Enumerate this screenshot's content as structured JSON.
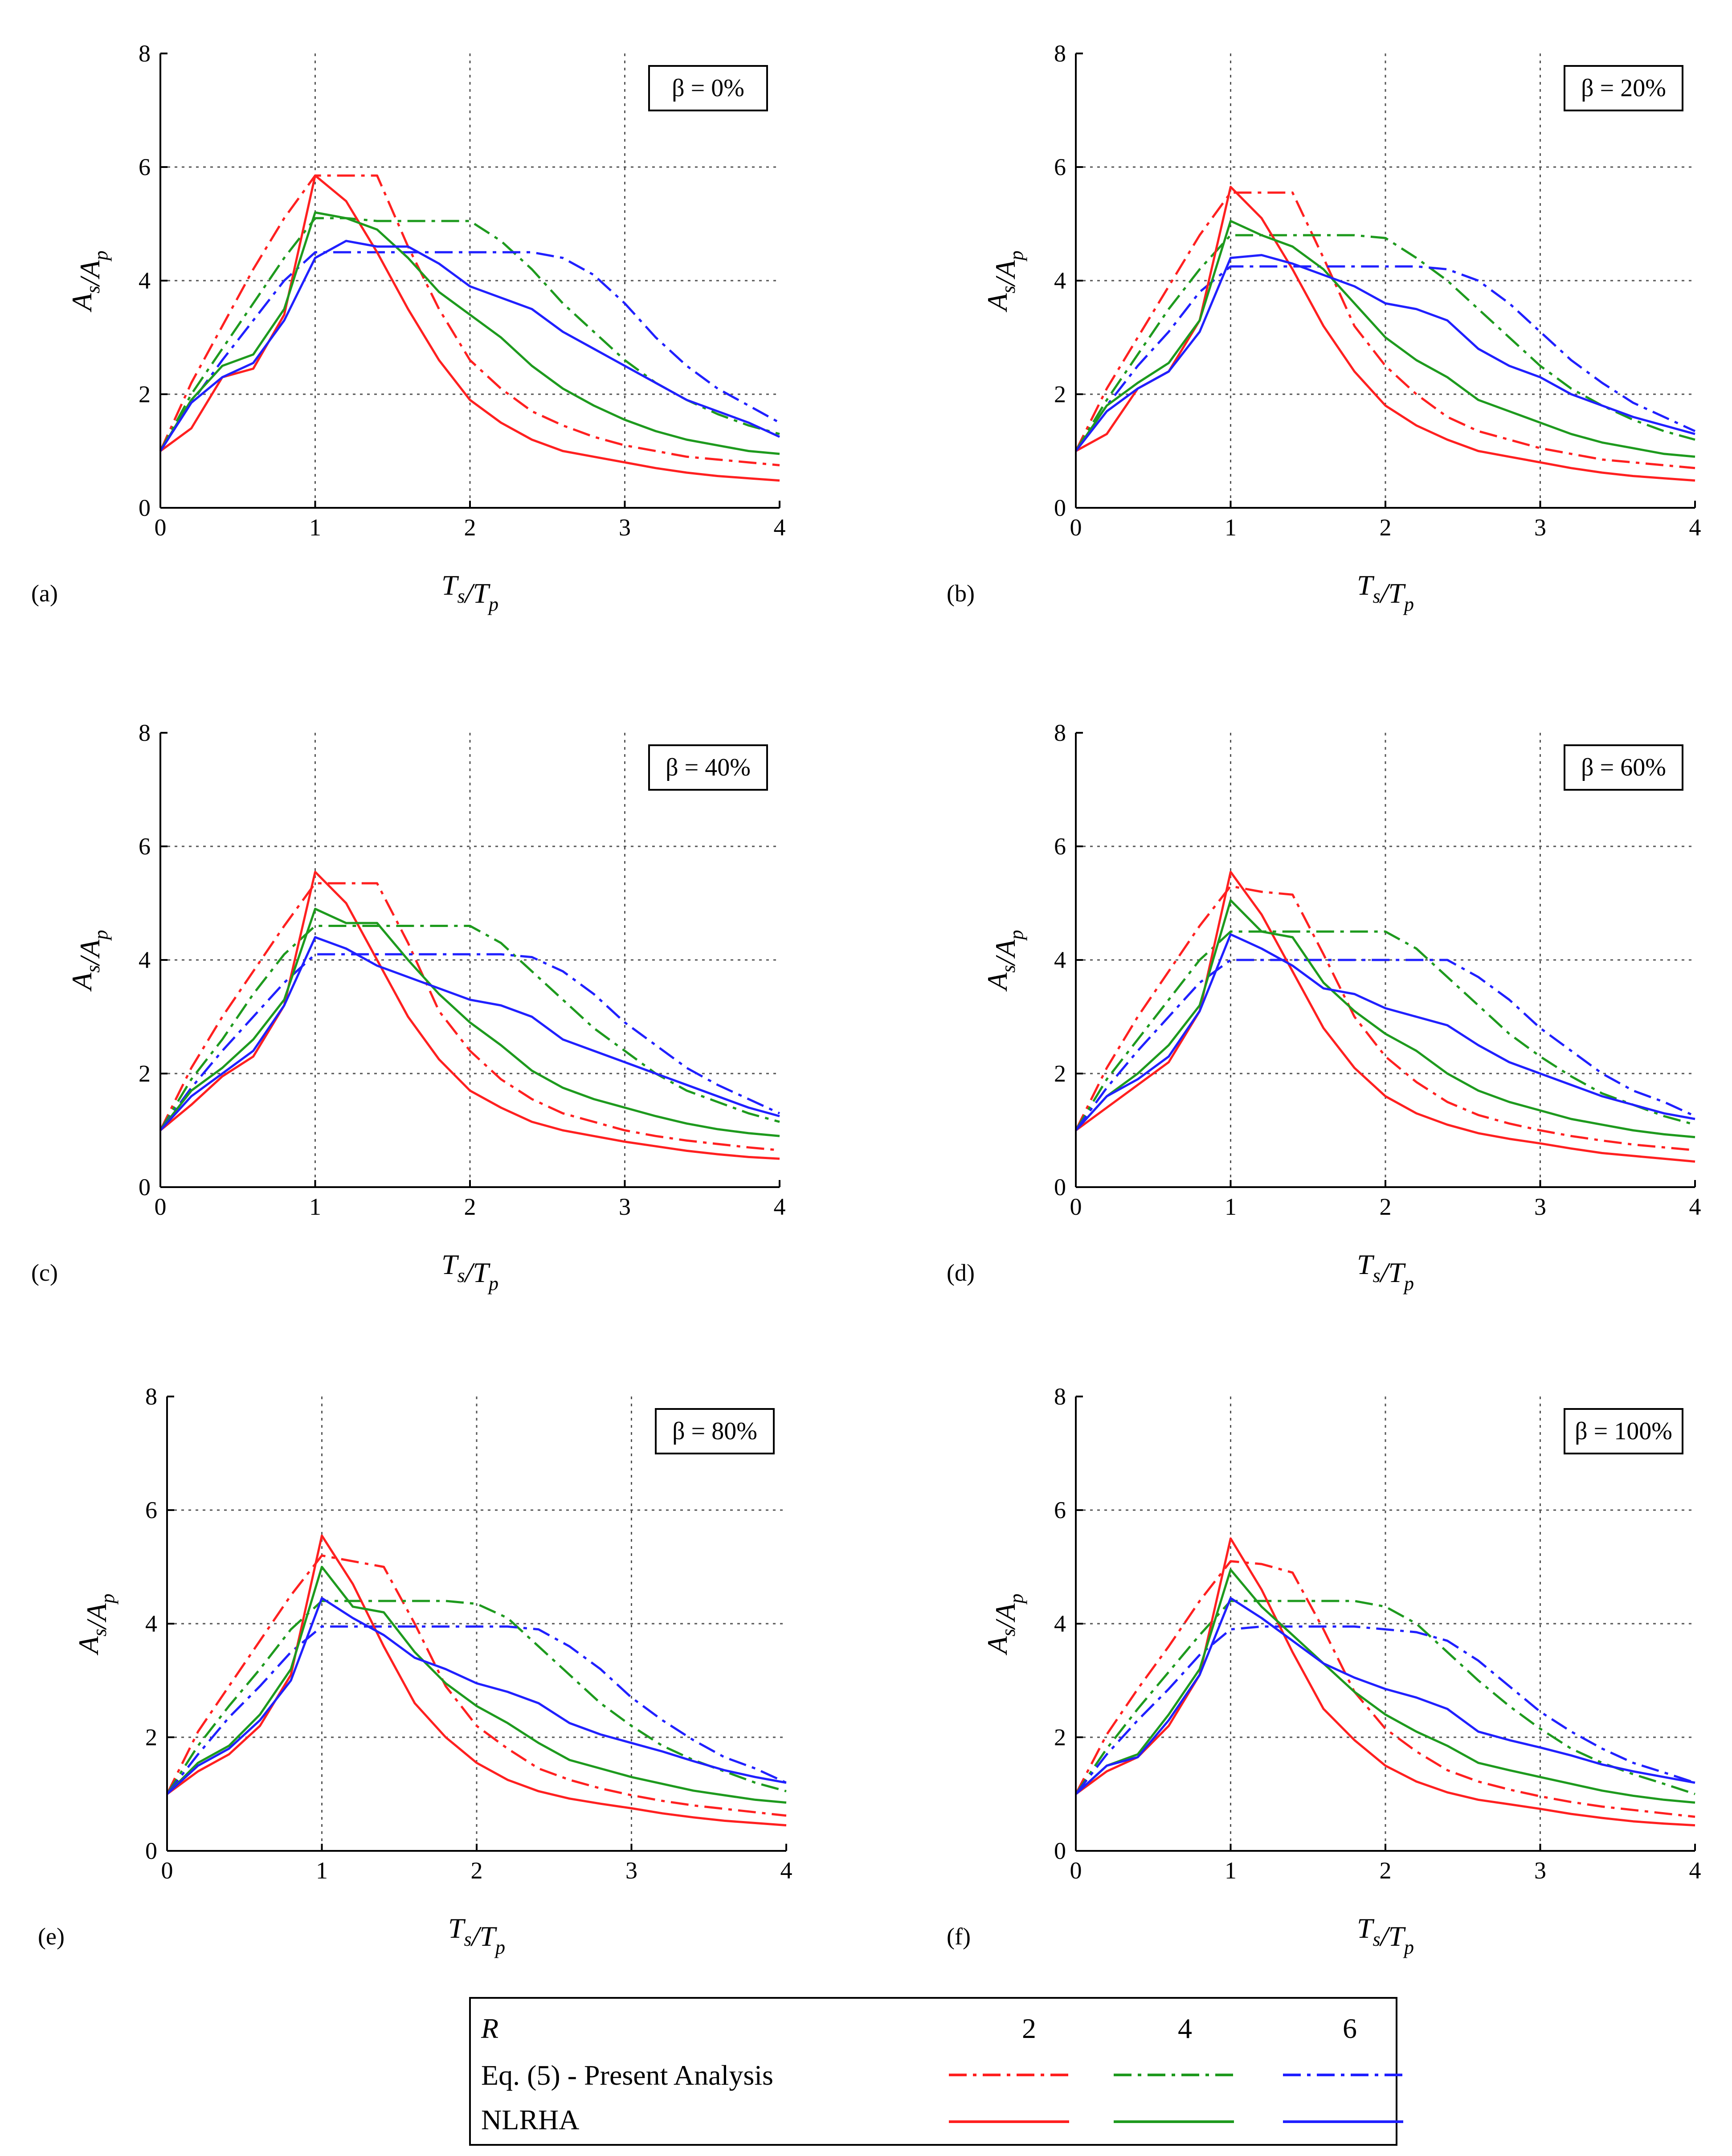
{
  "chart_data": {
    "type": "line",
    "xlabel": "T_s/T_p",
    "ylabel": "A_s/A_p",
    "xlim": [
      0,
      4
    ],
    "ylim": [
      0,
      8
    ],
    "xticks": [
      "0",
      "1",
      "2",
      "3",
      "4"
    ],
    "yticks": [
      "0",
      "2",
      "4",
      "6",
      "8"
    ],
    "grid": "dotted",
    "x": [
      0,
      0.2,
      0.4,
      0.6,
      0.8,
      1.0,
      1.2,
      1.4,
      1.6,
      1.8,
      2.0,
      2.2,
      2.4,
      2.6,
      2.8,
      3.0,
      3.2,
      3.4,
      3.6,
      3.8,
      4.0
    ],
    "panels": [
      {
        "label": "(a)",
        "beta": "β = 0%",
        "series": [
          {
            "name": "Eq. (5) R=2",
            "values": [
              1.0,
              2.2,
              3.2,
              4.2,
              5.1,
              5.85,
              5.85,
              5.85,
              4.6,
              3.5,
              2.6,
              2.1,
              1.7,
              1.45,
              1.25,
              1.1,
              1.0,
              0.9,
              0.85,
              0.8,
              0.75
            ]
          },
          {
            "name": "Eq. (5) R=4",
            "values": [
              1.0,
              2.0,
              2.8,
              3.6,
              4.4,
              5.1,
              5.1,
              5.05,
              5.05,
              5.05,
              5.05,
              4.7,
              4.2,
              3.6,
              3.1,
              2.6,
              2.2,
              1.9,
              1.65,
              1.45,
              1.3
            ]
          },
          {
            "name": "Eq. (5) R=6",
            "values": [
              1.0,
              1.85,
              2.6,
              3.3,
              4.0,
              4.5,
              4.5,
              4.5,
              4.5,
              4.5,
              4.5,
              4.5,
              4.5,
              4.4,
              4.1,
              3.6,
              3.0,
              2.5,
              2.1,
              1.8,
              1.5
            ]
          },
          {
            "name": "NLRHA R=2",
            "values": [
              1.0,
              1.4,
              2.3,
              2.45,
              3.4,
              5.85,
              5.4,
              4.5,
              3.5,
              2.6,
              1.9,
              1.5,
              1.2,
              1.0,
              0.9,
              0.8,
              0.7,
              0.62,
              0.56,
              0.52,
              0.48
            ]
          },
          {
            "name": "NLRHA R=4",
            "values": [
              1.0,
              1.9,
              2.5,
              2.7,
              3.5,
              5.2,
              5.1,
              4.9,
              4.4,
              3.8,
              3.4,
              3.0,
              2.5,
              2.1,
              1.8,
              1.55,
              1.35,
              1.2,
              1.1,
              1.0,
              0.95
            ]
          },
          {
            "name": "NLRHA R=6",
            "values": [
              1.0,
              1.85,
              2.3,
              2.55,
              3.3,
              4.4,
              4.7,
              4.6,
              4.6,
              4.3,
              3.9,
              3.7,
              3.5,
              3.1,
              2.8,
              2.5,
              2.2,
              1.9,
              1.7,
              1.5,
              1.25
            ]
          }
        ]
      },
      {
        "label": "(b)",
        "beta": "β = 20%",
        "series": [
          {
            "name": "Eq. (5) R=2",
            "values": [
              1.0,
              2.1,
              3.0,
              3.9,
              4.8,
              5.55,
              5.55,
              5.55,
              4.4,
              3.2,
              2.5,
              2.0,
              1.6,
              1.35,
              1.2,
              1.05,
              0.95,
              0.85,
              0.8,
              0.75,
              0.7
            ]
          },
          {
            "name": "Eq. (5) R=4",
            "values": [
              1.0,
              1.9,
              2.7,
              3.5,
              4.2,
              4.8,
              4.8,
              4.8,
              4.8,
              4.8,
              4.75,
              4.4,
              4.0,
              3.5,
              3.0,
              2.5,
              2.1,
              1.8,
              1.55,
              1.35,
              1.2
            ]
          },
          {
            "name": "Eq. (5) R=6",
            "values": [
              1.0,
              1.8,
              2.5,
              3.1,
              3.8,
              4.25,
              4.25,
              4.25,
              4.25,
              4.25,
              4.25,
              4.25,
              4.2,
              4.0,
              3.6,
              3.1,
              2.6,
              2.2,
              1.85,
              1.6,
              1.35
            ]
          },
          {
            "name": "NLRHA R=2",
            "values": [
              1.0,
              1.3,
              2.1,
              2.4,
              3.3,
              5.65,
              5.1,
              4.2,
              3.2,
              2.4,
              1.8,
              1.45,
              1.2,
              1.0,
              0.9,
              0.8,
              0.7,
              0.62,
              0.56,
              0.52,
              0.48
            ]
          },
          {
            "name": "NLRHA R=4",
            "values": [
              1.0,
              1.8,
              2.2,
              2.55,
              3.3,
              5.05,
              4.8,
              4.6,
              4.2,
              3.6,
              3.0,
              2.6,
              2.3,
              1.9,
              1.7,
              1.5,
              1.3,
              1.15,
              1.05,
              0.95,
              0.9
            ]
          },
          {
            "name": "NLRHA R=6",
            "values": [
              1.0,
              1.7,
              2.1,
              2.4,
              3.1,
              4.4,
              4.45,
              4.3,
              4.1,
              3.9,
              3.6,
              3.5,
              3.3,
              2.8,
              2.5,
              2.3,
              2.0,
              1.8,
              1.6,
              1.45,
              1.3
            ]
          }
        ]
      },
      {
        "label": "(c)",
        "beta": "β = 40%",
        "series": [
          {
            "name": "Eq. (5) R=2",
            "values": [
              1.0,
              2.1,
              3.0,
              3.8,
              4.6,
              5.35,
              5.35,
              5.35,
              4.3,
              3.1,
              2.4,
              1.9,
              1.55,
              1.3,
              1.15,
              1.0,
              0.9,
              0.82,
              0.76,
              0.7,
              0.65
            ]
          },
          {
            "name": "Eq. (5) R=4",
            "values": [
              1.0,
              1.9,
              2.6,
              3.4,
              4.1,
              4.6,
              4.6,
              4.6,
              4.6,
              4.6,
              4.6,
              4.3,
              3.8,
              3.3,
              2.8,
              2.4,
              2.0,
              1.7,
              1.5,
              1.3,
              1.15
            ]
          },
          {
            "name": "Eq. (5) R=6",
            "values": [
              1.0,
              1.75,
              2.4,
              3.0,
              3.6,
              4.1,
              4.1,
              4.1,
              4.1,
              4.1,
              4.1,
              4.1,
              4.05,
              3.8,
              3.4,
              2.9,
              2.5,
              2.1,
              1.8,
              1.55,
              1.3
            ]
          },
          {
            "name": "NLRHA R=2",
            "values": [
              1.0,
              1.45,
              1.95,
              2.3,
              3.2,
              5.55,
              5.0,
              4.0,
              3.0,
              2.25,
              1.7,
              1.4,
              1.15,
              1.0,
              0.9,
              0.8,
              0.72,
              0.64,
              0.58,
              0.53,
              0.5
            ]
          },
          {
            "name": "NLRHA R=4",
            "values": [
              1.0,
              1.7,
              2.1,
              2.6,
              3.3,
              4.9,
              4.65,
              4.65,
              4.0,
              3.4,
              2.9,
              2.5,
              2.05,
              1.75,
              1.55,
              1.4,
              1.25,
              1.12,
              1.02,
              0.95,
              0.9
            ]
          },
          {
            "name": "NLRHA R=6",
            "values": [
              1.0,
              1.6,
              2.0,
              2.4,
              3.2,
              4.4,
              4.2,
              3.9,
              3.7,
              3.5,
              3.3,
              3.2,
              3.0,
              2.6,
              2.4,
              2.2,
              2.0,
              1.8,
              1.6,
              1.4,
              1.25
            ]
          }
        ]
      },
      {
        "label": "(d)",
        "beta": "β = 60%",
        "series": [
          {
            "name": "Eq. (5) R=2",
            "values": [
              1.0,
              2.1,
              3.0,
              3.8,
              4.6,
              5.3,
              5.2,
              5.15,
              4.1,
              3.0,
              2.3,
              1.85,
              1.5,
              1.27,
              1.12,
              1.0,
              0.9,
              0.82,
              0.75,
              0.7,
              0.65
            ]
          },
          {
            "name": "Eq. (5) R=4",
            "values": [
              1.0,
              1.9,
              2.6,
              3.3,
              4.0,
              4.5,
              4.5,
              4.5,
              4.5,
              4.5,
              4.5,
              4.2,
              3.7,
              3.2,
              2.7,
              2.3,
              1.95,
              1.65,
              1.45,
              1.25,
              1.1
            ]
          },
          {
            "name": "Eq. (5) R=6",
            "values": [
              1.0,
              1.75,
              2.4,
              3.0,
              3.6,
              4.0,
              4.0,
              4.0,
              4.0,
              4.0,
              4.0,
              4.0,
              4.0,
              3.7,
              3.3,
              2.8,
              2.4,
              2.0,
              1.7,
              1.5,
              1.25
            ]
          },
          {
            "name": "NLRHA R=2",
            "values": [
              1.0,
              1.4,
              1.8,
              2.2,
              3.1,
              5.55,
              4.8,
              3.8,
              2.8,
              2.1,
              1.6,
              1.3,
              1.1,
              0.95,
              0.85,
              0.77,
              0.68,
              0.6,
              0.55,
              0.5,
              0.45
            ]
          },
          {
            "name": "NLRHA R=4",
            "values": [
              1.0,
              1.6,
              2.0,
              2.5,
              3.2,
              5.05,
              4.5,
              4.4,
              3.6,
              3.1,
              2.7,
              2.4,
              2.0,
              1.7,
              1.5,
              1.35,
              1.2,
              1.1,
              1.0,
              0.93,
              0.88
            ]
          },
          {
            "name": "NLRHA R=6",
            "values": [
              1.0,
              1.6,
              1.9,
              2.3,
              3.1,
              4.45,
              4.2,
              3.9,
              3.5,
              3.4,
              3.15,
              3.0,
              2.85,
              2.5,
              2.2,
              2.0,
              1.8,
              1.6,
              1.45,
              1.3,
              1.2
            ]
          }
        ]
      },
      {
        "label": "(e)",
        "beta": "β = 80%",
        "series": [
          {
            "name": "Eq. (5) R=2",
            "values": [
              1.0,
              2.1,
              2.9,
              3.7,
              4.5,
              5.2,
              5.1,
              5.0,
              4.0,
              2.9,
              2.2,
              1.8,
              1.45,
              1.25,
              1.1,
              0.98,
              0.88,
              0.8,
              0.74,
              0.68,
              0.62
            ]
          },
          {
            "name": "Eq. (5) R=4",
            "values": [
              1.0,
              1.85,
              2.55,
              3.2,
              3.9,
              4.4,
              4.4,
              4.4,
              4.4,
              4.4,
              4.35,
              4.1,
              3.6,
              3.1,
              2.6,
              2.2,
              1.85,
              1.6,
              1.4,
              1.2,
              1.05
            ]
          },
          {
            "name": "Eq. (5) R=6",
            "values": [
              1.0,
              1.7,
              2.35,
              2.9,
              3.5,
              3.95,
              3.95,
              3.95,
              3.95,
              3.95,
              3.95,
              3.95,
              3.9,
              3.6,
              3.2,
              2.7,
              2.3,
              1.95,
              1.65,
              1.45,
              1.2
            ]
          },
          {
            "name": "NLRHA R=2",
            "values": [
              1.0,
              1.4,
              1.7,
              2.2,
              3.1,
              5.55,
              4.7,
              3.6,
              2.6,
              2.0,
              1.55,
              1.25,
              1.05,
              0.92,
              0.83,
              0.75,
              0.66,
              0.59,
              0.53,
              0.49,
              0.45
            ]
          },
          {
            "name": "NLRHA R=4",
            "values": [
              1.0,
              1.55,
              1.85,
              2.4,
              3.2,
              5.0,
              4.3,
              4.2,
              3.5,
              2.95,
              2.55,
              2.25,
              1.9,
              1.6,
              1.45,
              1.3,
              1.18,
              1.06,
              0.98,
              0.9,
              0.85
            ]
          },
          {
            "name": "NLRHA R=6",
            "values": [
              1.0,
              1.5,
              1.8,
              2.3,
              3.0,
              4.45,
              4.1,
              3.8,
              3.4,
              3.2,
              2.95,
              2.8,
              2.6,
              2.25,
              2.05,
              1.9,
              1.75,
              1.58,
              1.42,
              1.3,
              1.2
            ]
          }
        ]
      },
      {
        "label": "(f)",
        "beta": "β = 100%",
        "series": [
          {
            "name": "Eq. (5) R=2",
            "values": [
              1.0,
              2.05,
              2.85,
              3.6,
              4.4,
              5.1,
              5.05,
              4.9,
              3.9,
              2.8,
              2.15,
              1.75,
              1.42,
              1.22,
              1.08,
              0.96,
              0.86,
              0.78,
              0.72,
              0.66,
              0.6
            ]
          },
          {
            "name": "Eq. (5) R=4",
            "values": [
              1.0,
              1.8,
              2.5,
              3.15,
              3.8,
              4.4,
              4.4,
              4.4,
              4.4,
              4.4,
              4.3,
              4.0,
              3.5,
              3.0,
              2.55,
              2.15,
              1.8,
              1.55,
              1.35,
              1.18,
              1.0
            ]
          },
          {
            "name": "Eq. (5) R=6",
            "values": [
              1.0,
              1.7,
              2.3,
              2.85,
              3.45,
              3.9,
              3.95,
              3.95,
              3.95,
              3.95,
              3.9,
              3.85,
              3.7,
              3.35,
              2.9,
              2.45,
              2.1,
              1.8,
              1.55,
              1.38,
              1.2
            ]
          },
          {
            "name": "NLRHA R=2",
            "values": [
              1.0,
              1.4,
              1.65,
              2.2,
              3.1,
              5.5,
              4.6,
              3.5,
              2.5,
              1.95,
              1.5,
              1.22,
              1.03,
              0.9,
              0.82,
              0.74,
              0.65,
              0.58,
              0.52,
              0.48,
              0.45
            ]
          },
          {
            "name": "NLRHA R=4",
            "values": [
              1.0,
              1.5,
              1.7,
              2.4,
              3.2,
              4.95,
              4.3,
              3.8,
              3.3,
              2.8,
              2.4,
              2.1,
              1.85,
              1.55,
              1.42,
              1.3,
              1.18,
              1.06,
              0.97,
              0.9,
              0.85
            ]
          },
          {
            "name": "NLRHA R=6",
            "values": [
              1.0,
              1.5,
              1.65,
              2.3,
              3.1,
              4.45,
              4.1,
              3.7,
              3.3,
              3.05,
              2.85,
              2.7,
              2.5,
              2.1,
              1.95,
              1.82,
              1.68,
              1.52,
              1.4,
              1.3,
              1.2
            ]
          }
        ]
      }
    ],
    "legend": {
      "header_label": "R",
      "r_values": [
        "2",
        "4",
        "6"
      ],
      "rows": [
        "Eq. (5) - Present Analysis",
        "NLRHA"
      ],
      "line_styles": {
        "Eq. (5) - Present Analysis": "dash-dot",
        "NLRHA": "solid"
      }
    },
    "colors": {
      "R2": "#ff2020",
      "R4": "#1e9a1e",
      "R6": "#2020ff",
      "grid": "#555555",
      "axis": "#000000"
    }
  }
}
